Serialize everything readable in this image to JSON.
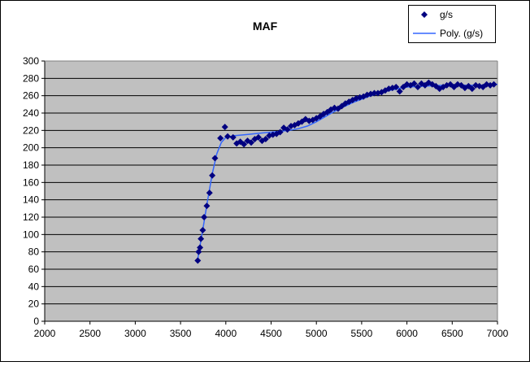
{
  "chart_data": {
    "type": "scatter",
    "title": "MAF",
    "xlabel": "",
    "ylabel": "",
    "xlim": [
      2000,
      7000
    ],
    "ylim": [
      0,
      300
    ],
    "x_ticks": [
      2000,
      2500,
      3000,
      3500,
      4000,
      4500,
      5000,
      5500,
      6000,
      6500,
      7000
    ],
    "y_ticks": [
      0,
      20,
      40,
      60,
      80,
      100,
      120,
      140,
      160,
      180,
      200,
      220,
      240,
      260,
      280,
      300
    ],
    "grid": "horizontal",
    "plot_background": "#c0c0c0",
    "legend_position": "top-right",
    "series": [
      {
        "name": "g/s",
        "marker": "diamond",
        "color": "#000080",
        "points": [
          [
            3690,
            70
          ],
          [
            3700,
            80
          ],
          [
            3715,
            85
          ],
          [
            3725,
            95
          ],
          [
            3745,
            105
          ],
          [
            3760,
            120
          ],
          [
            3790,
            133
          ],
          [
            3820,
            148
          ],
          [
            3850,
            168
          ],
          [
            3880,
            188
          ],
          [
            3940,
            211
          ],
          [
            3990,
            224
          ],
          [
            4020,
            213
          ],
          [
            4080,
            212
          ],
          [
            4120,
            205
          ],
          [
            4160,
            207
          ],
          [
            4200,
            204
          ],
          [
            4240,
            208
          ],
          [
            4280,
            206
          ],
          [
            4320,
            210
          ],
          [
            4360,
            212
          ],
          [
            4400,
            208
          ],
          [
            4440,
            210
          ],
          [
            4480,
            214
          ],
          [
            4520,
            215
          ],
          [
            4560,
            216
          ],
          [
            4600,
            218
          ],
          [
            4640,
            223
          ],
          [
            4680,
            221
          ],
          [
            4720,
            225
          ],
          [
            4760,
            226
          ],
          [
            4800,
            228
          ],
          [
            4840,
            230
          ],
          [
            4880,
            233
          ],
          [
            4920,
            231
          ],
          [
            4960,
            232
          ],
          [
            5000,
            234
          ],
          [
            5040,
            236
          ],
          [
            5080,
            239
          ],
          [
            5120,
            241
          ],
          [
            5160,
            244
          ],
          [
            5200,
            246
          ],
          [
            5240,
            245
          ],
          [
            5280,
            248
          ],
          [
            5320,
            251
          ],
          [
            5360,
            253
          ],
          [
            5400,
            255
          ],
          [
            5440,
            257
          ],
          [
            5480,
            258
          ],
          [
            5520,
            259
          ],
          [
            5560,
            261
          ],
          [
            5600,
            262
          ],
          [
            5640,
            263
          ],
          [
            5680,
            263
          ],
          [
            5720,
            264
          ],
          [
            5760,
            266
          ],
          [
            5800,
            268
          ],
          [
            5840,
            269
          ],
          [
            5880,
            270
          ],
          [
            5920,
            265
          ],
          [
            5960,
            270
          ],
          [
            6000,
            273
          ],
          [
            6040,
            272
          ],
          [
            6080,
            274
          ],
          [
            6120,
            270
          ],
          [
            6160,
            274
          ],
          [
            6200,
            272
          ],
          [
            6240,
            275
          ],
          [
            6280,
            273
          ],
          [
            6320,
            271
          ],
          [
            6360,
            268
          ],
          [
            6400,
            270
          ],
          [
            6440,
            272
          ],
          [
            6480,
            273
          ],
          [
            6520,
            270
          ],
          [
            6560,
            273
          ],
          [
            6600,
            272
          ],
          [
            6640,
            269
          ],
          [
            6680,
            271
          ],
          [
            6720,
            268
          ],
          [
            6760,
            272
          ],
          [
            6800,
            271
          ],
          [
            6840,
            270
          ],
          [
            6880,
            273
          ],
          [
            6920,
            272
          ],
          [
            6960,
            273
          ]
        ]
      },
      {
        "name": "Poly. (g/s)",
        "type": "line",
        "color": "#3366ff",
        "points": [
          [
            3690,
            72
          ],
          [
            3750,
            108
          ],
          [
            3800,
            140
          ],
          [
            3850,
            170
          ],
          [
            3900,
            193
          ],
          [
            3950,
            206
          ],
          [
            4000,
            212
          ],
          [
            4100,
            214
          ],
          [
            4200,
            215
          ],
          [
            4300,
            216
          ],
          [
            4400,
            217
          ],
          [
            4500,
            218
          ],
          [
            4600,
            219
          ],
          [
            4700,
            220
          ],
          [
            4800,
            222
          ],
          [
            4900,
            225
          ],
          [
            5000,
            230
          ],
          [
            5100,
            236
          ],
          [
            5200,
            242
          ],
          [
            5300,
            247
          ],
          [
            5400,
            252
          ],
          [
            5500,
            256
          ],
          [
            5600,
            260
          ],
          [
            5700,
            263
          ],
          [
            5800,
            266
          ],
          [
            5900,
            268
          ],
          [
            6000,
            270
          ],
          [
            6200,
            271
          ],
          [
            6400,
            272
          ],
          [
            6600,
            272
          ],
          [
            6800,
            272
          ],
          [
            7000,
            273
          ]
        ]
      }
    ]
  }
}
